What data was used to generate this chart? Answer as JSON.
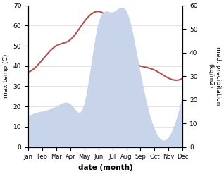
{
  "months": [
    "Jan",
    "Feb",
    "Mar",
    "Apr",
    "May",
    "Jun",
    "Jul",
    "Aug",
    "Sep",
    "Oct",
    "Nov",
    "Dec"
  ],
  "temp_max": [
    37,
    43,
    50,
    53,
    62,
    67,
    60,
    45,
    40,
    38,
    34,
    34
  ],
  "precipitation": [
    13,
    15,
    17,
    18,
    18,
    52,
    57,
    57,
    30,
    7,
    4,
    22
  ],
  "temp_ylim": [
    0,
    70
  ],
  "precip_ylim": [
    0,
    60
  ],
  "temp_color": "#b05050",
  "precip_fill_color": "#c8d4ea",
  "xlabel": "date (month)",
  "ylabel_left": "max temp (C)",
  "ylabel_right": "med. precipitation\n(kg/m2)",
  "bg_color": "#ffffff",
  "fig_width": 3.18,
  "fig_height": 2.47,
  "temp_yticks": [
    0,
    10,
    20,
    30,
    40,
    50,
    60,
    70
  ],
  "precip_yticks": [
    0,
    10,
    20,
    30,
    40,
    50,
    60
  ]
}
